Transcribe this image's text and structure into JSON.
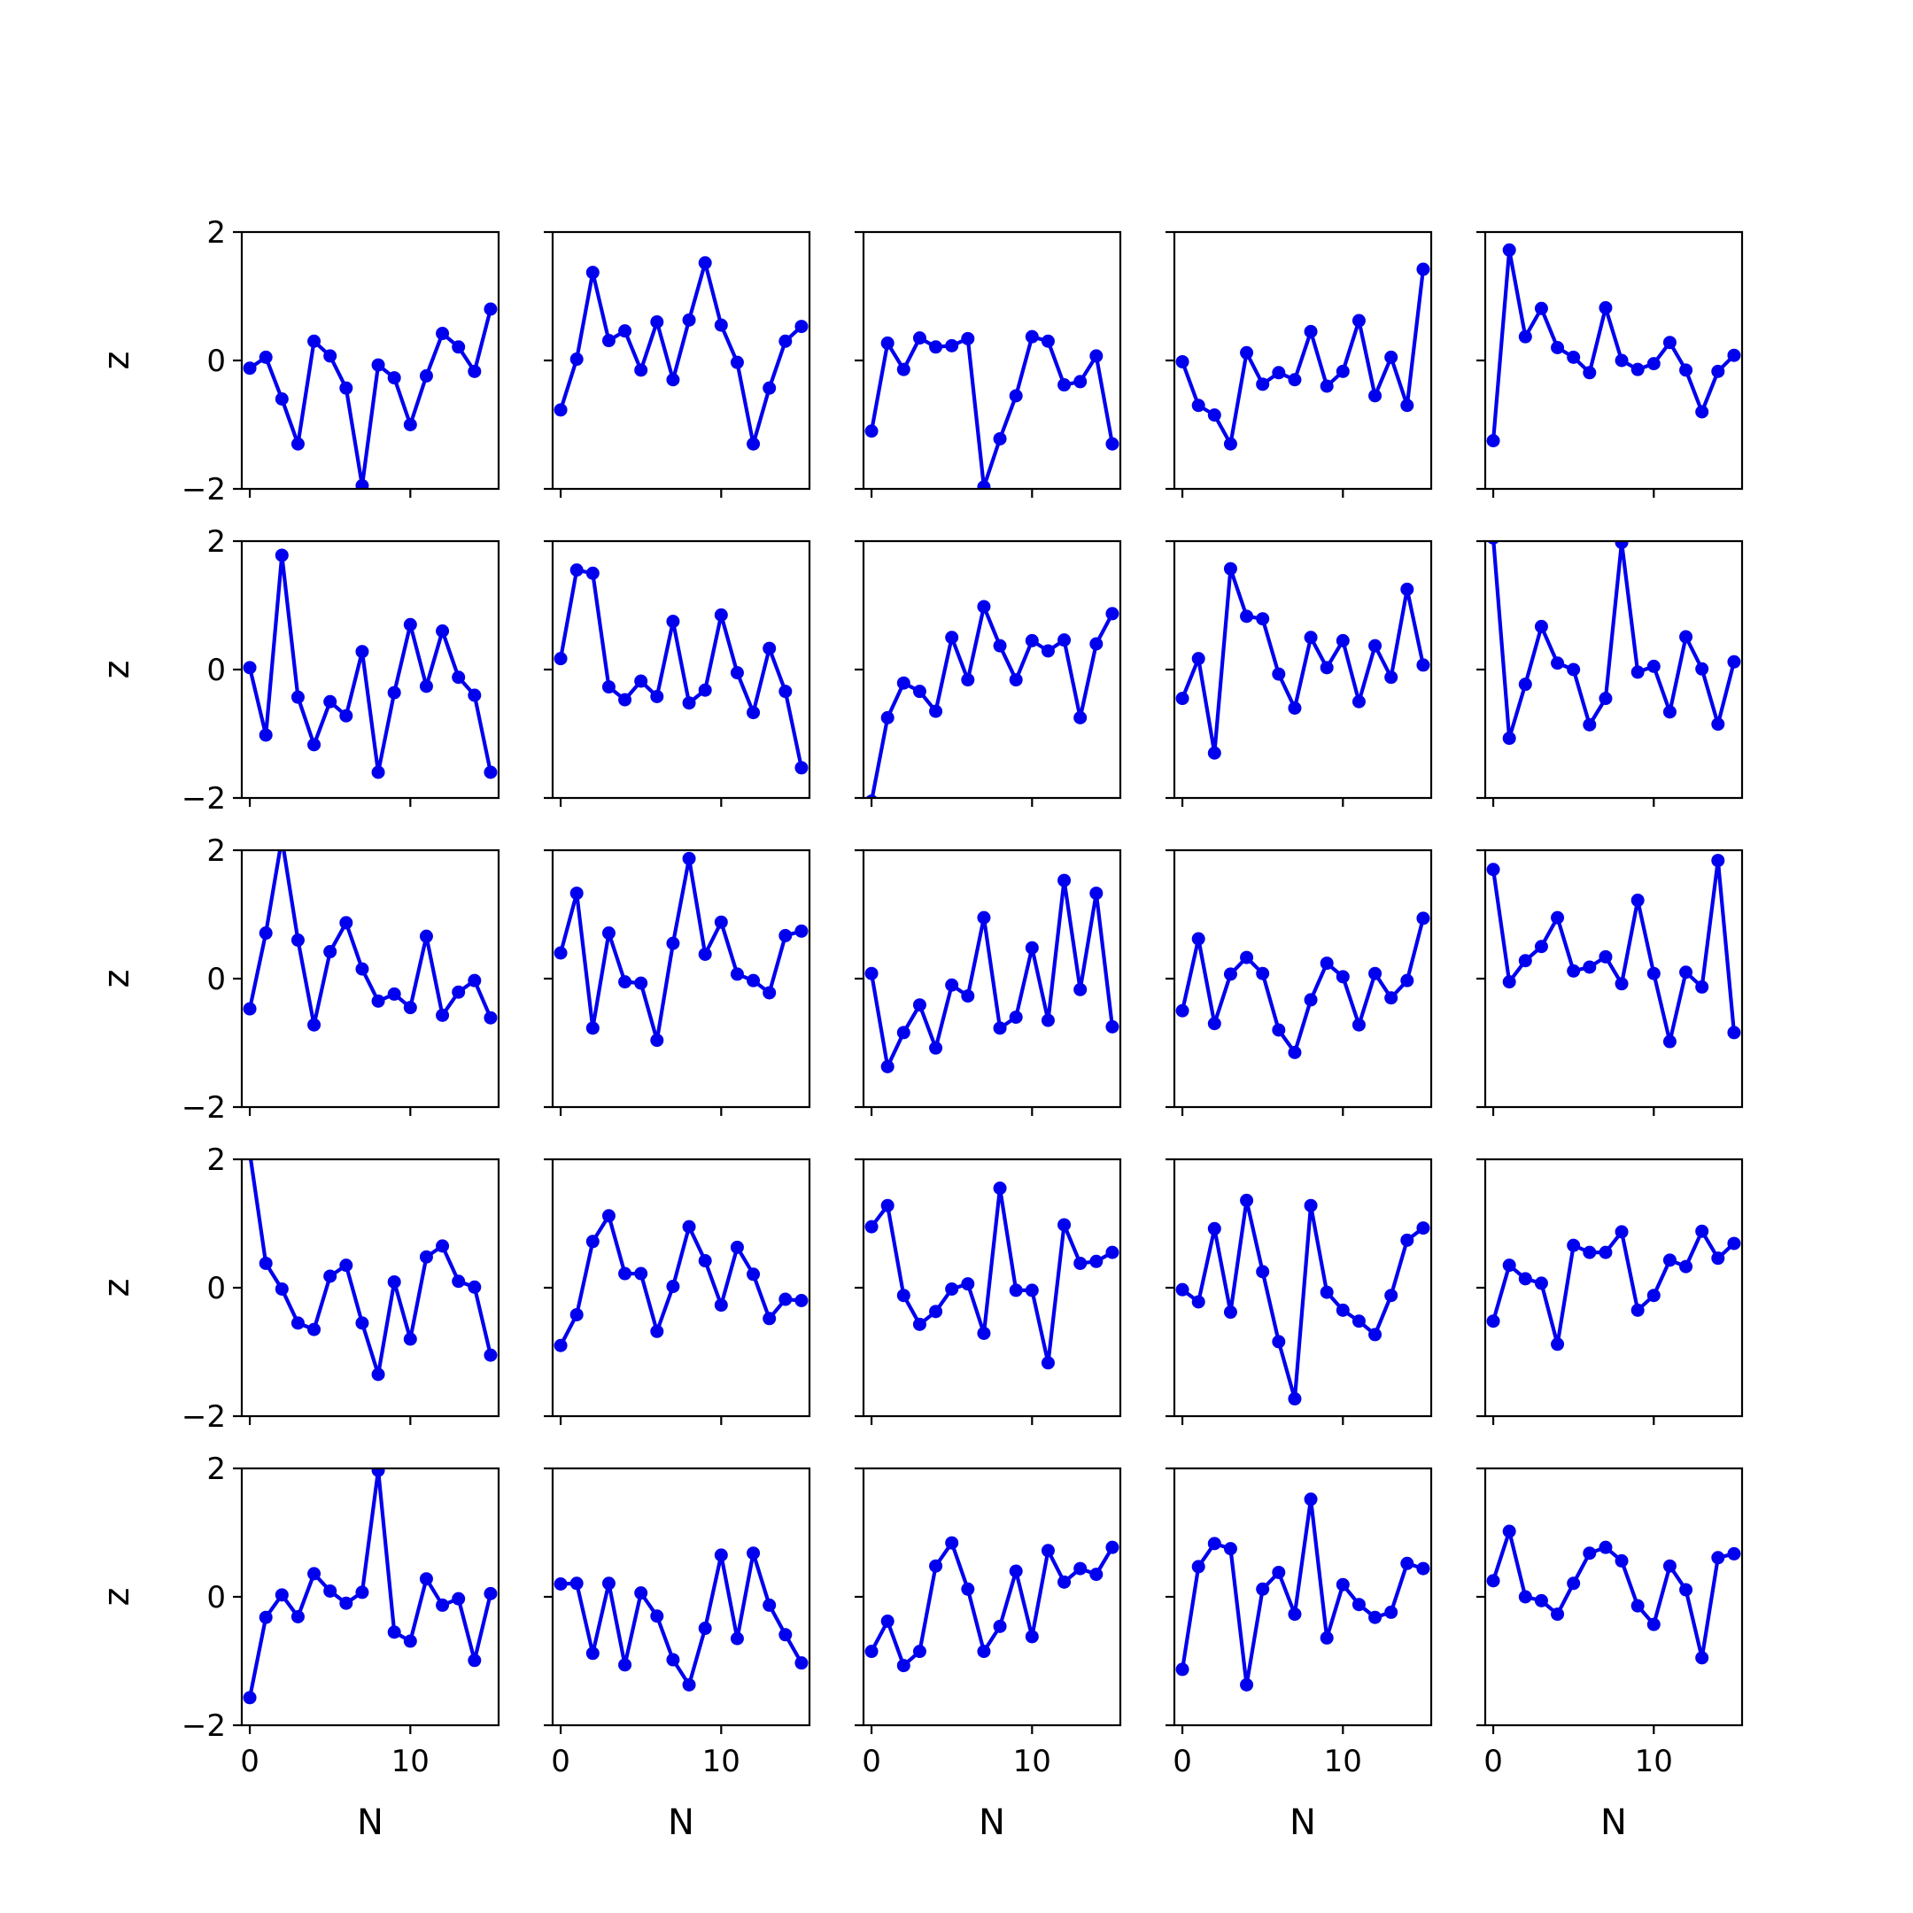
{
  "chart_data": {
    "type": "line",
    "layout": "5x5 grid of subplots",
    "xlabel": "N",
    "ylabel": "z",
    "xlim": [
      -0.5,
      15.5
    ],
    "ylim": [
      -2,
      2
    ],
    "xticks": [
      0,
      10
    ],
    "xtick_labels": [
      "0",
      "10"
    ],
    "yticks": [
      -2,
      0,
      2
    ],
    "ytick_labels": [
      "−2",
      "0",
      "2"
    ],
    "line_color": "#0000ee",
    "marker": "circle",
    "grid": false,
    "x": [
      0,
      1,
      2,
      3,
      4,
      5,
      6,
      7,
      8,
      9,
      10,
      11,
      12,
      13,
      14,
      15
    ],
    "panels": [
      {
        "row": 0,
        "col": 0,
        "values": [
          -0.12,
          0.05,
          -0.6,
          -1.3,
          0.3,
          0.07,
          -0.43,
          -1.95,
          -0.07,
          -0.27,
          -1.0,
          -0.24,
          0.42,
          0.21,
          -0.17,
          0.8
        ]
      },
      {
        "row": 0,
        "col": 1,
        "values": [
          -0.77,
          0.02,
          1.37,
          0.31,
          0.46,
          -0.15,
          0.6,
          -0.3,
          0.63,
          1.52,
          0.55,
          -0.03,
          -1.3,
          -0.43,
          0.3,
          0.53
        ]
      },
      {
        "row": 0,
        "col": 2,
        "values": [
          -1.1,
          0.27,
          -0.14,
          0.35,
          0.21,
          0.23,
          0.34,
          -1.97,
          -1.22,
          -0.55,
          0.37,
          0.3,
          -0.38,
          -0.33,
          0.07,
          -1.3
        ]
      },
      {
        "row": 0,
        "col": 3,
        "values": [
          -0.02,
          -0.7,
          -0.85,
          -1.3,
          0.12,
          -0.37,
          -0.19,
          -0.3,
          0.45,
          -0.4,
          -0.17,
          0.62,
          -0.55,
          0.05,
          -0.7,
          1.42
        ]
      },
      {
        "row": 0,
        "col": 4,
        "values": [
          -1.25,
          1.72,
          0.37,
          0.81,
          0.2,
          0.05,
          -0.19,
          0.82,
          0.0,
          -0.14,
          -0.05,
          0.28,
          -0.15,
          -0.8,
          -0.17,
          0.08
        ]
      },
      {
        "row": 1,
        "col": 0,
        "values": [
          0.03,
          -1.02,
          1.78,
          -0.43,
          -1.17,
          -0.5,
          -0.72,
          0.28,
          -1.6,
          -0.36,
          0.7,
          -0.26,
          0.6,
          -0.12,
          -0.4,
          -1.6
        ]
      },
      {
        "row": 1,
        "col": 1,
        "values": [
          0.17,
          1.55,
          1.5,
          -0.27,
          -0.47,
          -0.18,
          -0.42,
          0.75,
          -0.52,
          -0.32,
          0.85,
          -0.05,
          -0.67,
          0.33,
          -0.34,
          -1.53
        ]
      },
      {
        "row": 1,
        "col": 2,
        "values": [
          -2.05,
          -0.75,
          -0.21,
          -0.34,
          -0.65,
          0.5,
          -0.16,
          0.98,
          0.37,
          -0.16,
          0.45,
          0.29,
          0.46,
          -0.75,
          0.4,
          0.87
        ]
      },
      {
        "row": 1,
        "col": 3,
        "values": [
          -0.45,
          0.17,
          -1.3,
          1.57,
          0.83,
          0.79,
          -0.07,
          -0.6,
          0.5,
          0.03,
          0.45,
          -0.5,
          0.37,
          -0.12,
          1.25,
          0.07
        ]
      },
      {
        "row": 1,
        "col": 4,
        "values": [
          2.05,
          -1.07,
          -0.23,
          0.67,
          0.1,
          0.0,
          -0.86,
          -0.45,
          1.98,
          -0.04,
          0.05,
          -0.66,
          0.51,
          0.01,
          -0.85,
          0.12
        ]
      },
      {
        "row": 2,
        "col": 0,
        "values": [
          -0.47,
          0.71,
          2.18,
          0.6,
          -0.72,
          0.42,
          0.87,
          0.15,
          -0.35,
          -0.24,
          -0.45,
          0.66,
          -0.57,
          -0.21,
          -0.03,
          -0.61
        ]
      },
      {
        "row": 2,
        "col": 1,
        "values": [
          0.4,
          1.33,
          -0.77,
          0.71,
          -0.05,
          -0.07,
          -0.96,
          0.55,
          1.87,
          0.38,
          0.88,
          0.07,
          -0.03,
          -0.22,
          0.67,
          0.74
        ]
      },
      {
        "row": 2,
        "col": 2,
        "values": [
          0.08,
          -1.37,
          -0.84,
          -0.41,
          -1.08,
          -0.1,
          -0.27,
          0.95,
          -0.77,
          -0.6,
          0.48,
          -0.65,
          1.53,
          -0.17,
          1.33,
          -0.75
        ]
      },
      {
        "row": 2,
        "col": 3,
        "values": [
          -0.5,
          0.62,
          -0.7,
          0.07,
          0.33,
          0.08,
          -0.8,
          -1.15,
          -0.33,
          0.24,
          0.03,
          -0.72,
          0.08,
          -0.3,
          -0.03,
          0.94
        ]
      },
      {
        "row": 2,
        "col": 4,
        "values": [
          1.7,
          -0.05,
          0.28,
          0.5,
          0.95,
          0.12,
          0.18,
          0.34,
          -0.08,
          1.22,
          0.08,
          -0.98,
          0.1,
          -0.13,
          1.84,
          -0.84
        ]
      },
      {
        "row": 3,
        "col": 0,
        "values": [
          2.1,
          0.38,
          -0.02,
          -0.55,
          -0.65,
          0.18,
          0.35,
          -0.55,
          -1.35,
          0.09,
          -0.8,
          0.48,
          0.65,
          0.1,
          0.01,
          -1.05
        ]
      },
      {
        "row": 3,
        "col": 1,
        "values": [
          -0.9,
          -0.42,
          0.72,
          1.12,
          0.22,
          0.22,
          -0.68,
          0.02,
          0.95,
          0.42,
          -0.27,
          0.63,
          0.21,
          -0.48,
          -0.18,
          -0.2
        ]
      },
      {
        "row": 3,
        "col": 2,
        "values": [
          0.95,
          1.28,
          -0.12,
          -0.57,
          -0.37,
          -0.02,
          0.06,
          -0.71,
          1.55,
          -0.04,
          -0.04,
          -1.17,
          0.98,
          0.38,
          0.41,
          0.55
        ]
      },
      {
        "row": 3,
        "col": 3,
        "values": [
          -0.03,
          -0.22,
          0.92,
          -0.38,
          1.36,
          0.25,
          -0.84,
          -1.73,
          1.28,
          -0.07,
          -0.35,
          -0.52,
          -0.73,
          -0.12,
          0.74,
          0.93
        ]
      },
      {
        "row": 3,
        "col": 4,
        "values": [
          -0.52,
          0.35,
          0.14,
          0.07,
          -0.88,
          0.66,
          0.55,
          0.55,
          0.87,
          -0.35,
          -0.12,
          0.43,
          0.33,
          0.88,
          0.46,
          0.69
        ]
      },
      {
        "row": 4,
        "col": 0,
        "values": [
          -1.57,
          -0.32,
          0.03,
          -0.31,
          0.36,
          0.09,
          -0.1,
          0.07,
          1.97,
          -0.55,
          -0.69,
          0.28,
          -0.13,
          -0.03,
          -0.99,
          0.05
        ]
      },
      {
        "row": 4,
        "col": 1,
        "values": [
          0.2,
          0.21,
          -0.88,
          0.21,
          -1.06,
          0.06,
          -0.3,
          -0.98,
          -1.37,
          -0.49,
          0.65,
          -0.65,
          0.68,
          -0.13,
          -0.59,
          -1.03
        ]
      },
      {
        "row": 4,
        "col": 2,
        "values": [
          -0.85,
          -0.38,
          -1.07,
          -0.85,
          0.48,
          0.84,
          0.12,
          -0.85,
          -0.46,
          0.4,
          -0.62,
          0.72,
          0.23,
          0.44,
          0.35,
          0.77
        ]
      },
      {
        "row": 4,
        "col": 3,
        "values": [
          -1.13,
          0.47,
          0.83,
          0.75,
          -1.37,
          0.12,
          0.38,
          -0.27,
          1.52,
          -0.64,
          0.19,
          -0.12,
          -0.32,
          -0.24,
          0.52,
          0.44
        ]
      },
      {
        "row": 4,
        "col": 4,
        "values": [
          0.25,
          1.02,
          0.0,
          -0.06,
          -0.27,
          0.21,
          0.68,
          0.77,
          0.56,
          -0.14,
          -0.43,
          0.48,
          0.11,
          -0.95,
          0.61,
          0.67
        ]
      }
    ]
  }
}
